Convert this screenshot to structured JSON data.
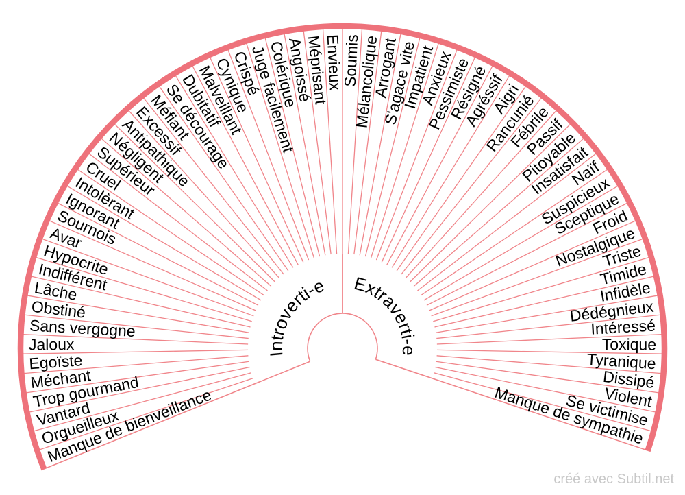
{
  "hub": {
    "left_label": "Introverti-e",
    "right_label": "Extraverti-e"
  },
  "left_labels": [
    "Envieux",
    "Méprisant",
    "Angoissé",
    "Colérique",
    "Juge facilement",
    "Crispé",
    "Cynique",
    "Malveillant",
    "Dubitatif",
    "Se décourage",
    "Méfiant",
    "Excessif",
    "Antipathique",
    "Négligent",
    "Supérieur",
    "Cruel",
    "Intolèrant",
    "Ignorant",
    "Sournois",
    "Avar",
    "Hypocrite",
    "Indifférent",
    "Lâche",
    "Obstiné",
    "Sans vergogne",
    "Jaloux",
    "Egoïste",
    "Méchant",
    "Trop gourmand",
    "Vantard",
    "Orgueilleux",
    "Manque de bienveillance"
  ],
  "right_labels": [
    "Soumis",
    "Mélancolique",
    "Arrogant",
    "S'agace vite",
    "Impatient",
    "Anxieux",
    "Pessimiste",
    "Résigné",
    "Agréssif",
    "Aigri",
    "Rancunié",
    "Fébrile",
    "Passif",
    "Pitoyable",
    "Insatisfait",
    "Naïf",
    "Suspicieux",
    "Sceptique",
    "Froid",
    "Nostalgique",
    "Triste",
    "Timide",
    "Infidèle",
    "Dédégnieux",
    "Intéressé",
    "Toxique",
    "Tyranique",
    "Dissipé",
    "Violent",
    "Se victimise",
    "Manque de sympathie"
  ],
  "footer": "créé avec Subtil.net",
  "colors": {
    "arc": "#ee727b",
    "line": "#f0858a",
    "label_text": "#000000",
    "footer_text": "#c8c8c8"
  }
}
